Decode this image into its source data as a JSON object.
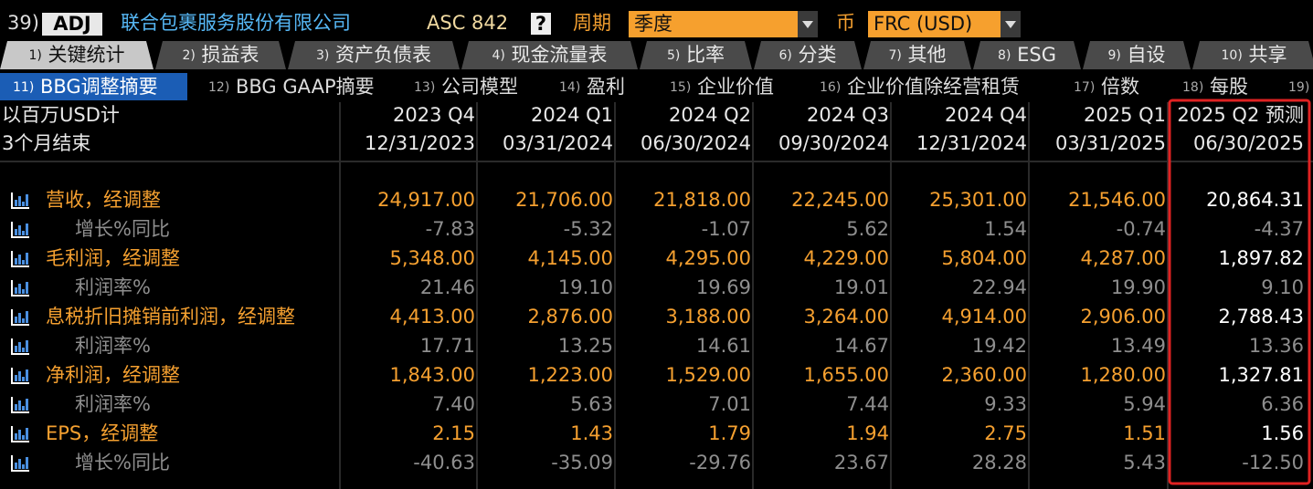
{
  "header": {
    "num": "39)",
    "adj": "ADJ",
    "company": "联合包裹服务股份有限公司",
    "standard": "ASC 842",
    "help": "?",
    "period_label": "周期",
    "period": "季度",
    "currency_label": "币",
    "currency": "FRC (USD)"
  },
  "tabs1": [
    {
      "num": "1)",
      "label": "关键统计"
    },
    {
      "num": "2)",
      "label": "损益表"
    },
    {
      "num": "3)",
      "label": "资产负债表"
    },
    {
      "num": "4)",
      "label": "现金流量表"
    },
    {
      "num": "5)",
      "label": "比率"
    },
    {
      "num": "6)",
      "label": "分类"
    },
    {
      "num": "7)",
      "label": "其他"
    },
    {
      "num": "8)",
      "label": "ESG"
    },
    {
      "num": "9)",
      "label": "自设"
    },
    {
      "num": "10)",
      "label": "共享"
    }
  ],
  "tabs2": [
    {
      "num": "11)",
      "label": "BBG调整摘要"
    },
    {
      "num": "12)",
      "label": "BBG GAAP摘要"
    },
    {
      "num": "13)",
      "label": "公司模型"
    },
    {
      "num": "14)",
      "label": "盈利"
    },
    {
      "num": "15)",
      "label": "企业价值"
    },
    {
      "num": "16)",
      "label": "企业价值除经营租赁"
    },
    {
      "num": "17)",
      "label": "倍数"
    },
    {
      "num": "18)",
      "label": "每股"
    },
    {
      "num": "19)"
    }
  ],
  "table": {
    "header_left": [
      "以百万USD计",
      "3个月结束"
    ],
    "columns": [
      {
        "period": "2023 Q4",
        "date": "12/31/2023"
      },
      {
        "period": "2024 Q1",
        "date": "03/31/2024"
      },
      {
        "period": "2024 Q2",
        "date": "06/30/2024"
      },
      {
        "period": "2024 Q3",
        "date": "09/30/2024"
      },
      {
        "period": "2024 Q4",
        "date": "12/31/2024"
      },
      {
        "period": "2025 Q1",
        "date": "03/31/2025"
      },
      {
        "period": "2025 Q2 预测",
        "date": "06/30/2025"
      }
    ],
    "rows": [
      {
        "label": "营收，经调整",
        "values": [
          "24,917.00",
          "21,706.00",
          "21,818.00",
          "22,245.00",
          "25,301.00",
          "21,546.00",
          "20,864.31"
        ]
      },
      {
        "label": "增长%同比",
        "values": [
          "-7.83",
          "-5.32",
          "-1.07",
          "5.62",
          "1.54",
          "-0.74",
          "-4.37"
        ]
      },
      {
        "label": "毛利润，经调整",
        "values": [
          "5,348.00",
          "4,145.00",
          "4,295.00",
          "4,229.00",
          "5,804.00",
          "4,287.00",
          "1,897.82"
        ]
      },
      {
        "label": "利润率%",
        "values": [
          "21.46",
          "19.10",
          "19.69",
          "19.01",
          "22.94",
          "19.90",
          "9.10"
        ]
      },
      {
        "label": "息税折旧摊销前利润，经调整",
        "values": [
          "4,413.00",
          "2,876.00",
          "3,188.00",
          "3,264.00",
          "4,914.00",
          "2,906.00",
          "2,788.43"
        ]
      },
      {
        "label": "利润率%",
        "values": [
          "17.71",
          "13.25",
          "14.61",
          "14.67",
          "19.42",
          "13.49",
          "13.36"
        ]
      },
      {
        "label": "净利润，经调整",
        "values": [
          "1,843.00",
          "1,223.00",
          "1,529.00",
          "1,655.00",
          "2,360.00",
          "1,280.00",
          "1,327.81"
        ]
      },
      {
        "label": "利润率%",
        "values": [
          "7.40",
          "5.63",
          "7.01",
          "7.44",
          "9.33",
          "5.94",
          "6.36"
        ]
      },
      {
        "label": "EPS，经调整",
        "values": [
          "2.15",
          "1.43",
          "1.79",
          "1.94",
          "2.75",
          "1.51",
          "1.56"
        ]
      },
      {
        "label": "增长%同比",
        "values": [
          "-40.63",
          "-35.09",
          "-29.76",
          "23.67",
          "28.28",
          "5.43",
          "-12.50"
        ]
      }
    ]
  }
}
